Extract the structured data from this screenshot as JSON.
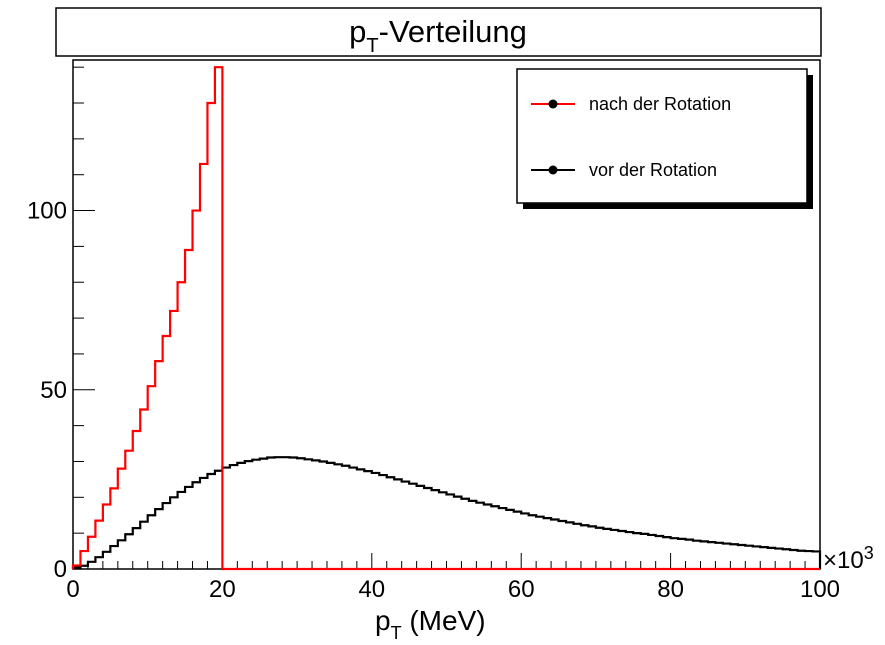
{
  "colors": {
    "background": "#ffffff",
    "frame": "#000000",
    "series_after": "#ff0000",
    "series_before": "#000000"
  },
  "chart_data": {
    "type": "line",
    "style": "step-histogram",
    "title": {
      "main": "p",
      "sub": "T",
      "rest": "-Verteilung"
    },
    "xlabel": {
      "main": "p",
      "sub": "T",
      "rest": " (MeV)"
    },
    "x_multiplier": {
      "sign": "×10",
      "exp": "3"
    },
    "ylabel": "",
    "xlim": [
      0,
      100
    ],
    "ylim": [
      0,
      142
    ],
    "x_ticks": [
      0,
      20,
      40,
      60,
      80,
      100
    ],
    "y_ticks": [
      0,
      50,
      100
    ],
    "grid": false,
    "legend": {
      "placement": "top-right"
    },
    "series": [
      {
        "name": "nach der Rotation",
        "color": "#ff0000",
        "bin_width": 1,
        "x_start": 0,
        "values": [
          1,
          5,
          9,
          13.5,
          18,
          22.5,
          28,
          33,
          38.5,
          44.5,
          51,
          58,
          65,
          72,
          80,
          89,
          100,
          113,
          130,
          140
        ]
      },
      {
        "name": "vor der Rotation",
        "color": "#000000",
        "bin_width": 1,
        "x_start": 0,
        "values": [
          0.4,
          0.9,
          2.0,
          3.3,
          4.8,
          6.4,
          8.0,
          9.7,
          11.4,
          13.2,
          15.0,
          16.7,
          18.4,
          20.0,
          21.5,
          22.9,
          24.2,
          25.4,
          26.5,
          27.4,
          28.3,
          29.0,
          29.6,
          30.1,
          30.5,
          30.8,
          31.1,
          31.2,
          31.2,
          31.1,
          30.9,
          30.6,
          30.3,
          30.0,
          29.6,
          29.2,
          28.8,
          28.3,
          27.8,
          27.3,
          26.8,
          26.2,
          25.6,
          25.0,
          24.4,
          23.8,
          23.2,
          22.6,
          22.0,
          21.4,
          20.8,
          20.2,
          19.6,
          19.0,
          18.5,
          18.0,
          17.5,
          17.0,
          16.5,
          16.0,
          15.5,
          15.0,
          14.6,
          14.2,
          13.8,
          13.4,
          13.0,
          12.6,
          12.2,
          11.9,
          11.5,
          11.2,
          10.9,
          10.6,
          10.3,
          10.0,
          9.8,
          9.5,
          9.2,
          8.9,
          8.6,
          8.4,
          8.2,
          7.9,
          7.7,
          7.5,
          7.3,
          7.1,
          6.9,
          6.7,
          6.5,
          6.3,
          6.1,
          5.9,
          5.7,
          5.5,
          5.3,
          5.1,
          5.0,
          4.9
        ]
      }
    ]
  }
}
